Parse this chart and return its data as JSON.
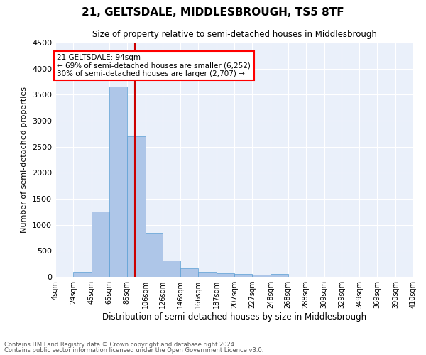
{
  "title": "21, GELTSDALE, MIDDLESBROUGH, TS5 8TF",
  "subtitle": "Size of property relative to semi-detached houses in Middlesbrough",
  "xlabel": "Distribution of semi-detached houses by size in Middlesbrough",
  "ylabel": "Number of semi-detached properties",
  "footer1": "Contains HM Land Registry data © Crown copyright and database right 2024.",
  "footer2": "Contains public sector information licensed under the Open Government Licence v3.0.",
  "annotation_title": "21 GELTSDALE: 94sqm",
  "annotation_line2": "← 69% of semi-detached houses are smaller (6,252)",
  "annotation_line3": "30% of semi-detached houses are larger (2,707) →",
  "property_size": 94,
  "bar_edges": [
    4,
    24,
    45,
    65,
    85,
    106,
    126,
    146,
    166,
    187,
    207,
    227,
    248,
    268,
    288,
    309,
    329,
    349,
    369,
    390,
    410
  ],
  "bar_heights": [
    0,
    100,
    1250,
    3650,
    2700,
    840,
    320,
    160,
    100,
    65,
    50,
    45,
    50,
    0,
    0,
    0,
    0,
    0,
    0,
    0
  ],
  "bar_color": "#aec6e8",
  "bar_edge_color": "#5a9fd4",
  "line_color": "#cc0000",
  "bg_color": "#eaf0fa",
  "grid_color": "#ffffff",
  "ylim": [
    0,
    4500
  ],
  "yticks": [
    0,
    500,
    1000,
    1500,
    2000,
    2500,
    3000,
    3500,
    4000,
    4500
  ]
}
